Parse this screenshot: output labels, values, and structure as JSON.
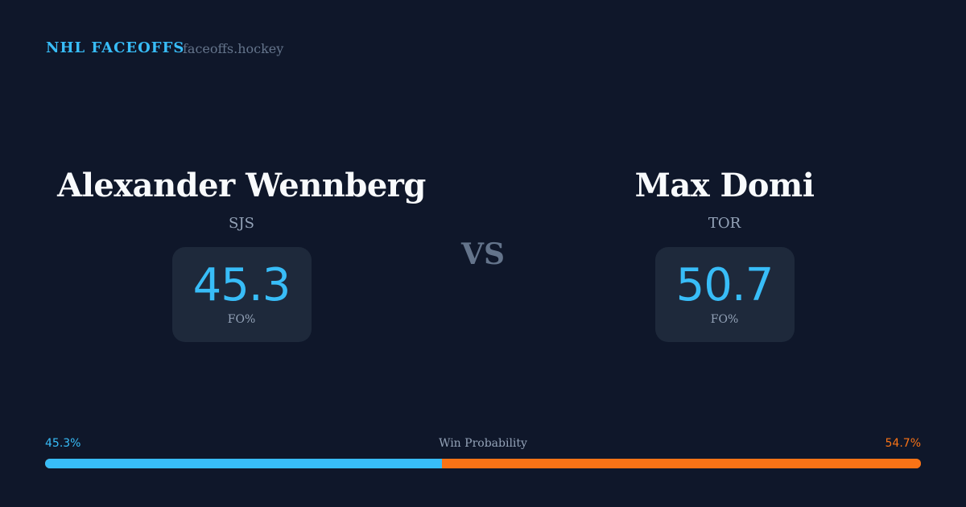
{
  "header": {
    "brand": "NHL FACEOFFS",
    "site": "faceoffs.hockey"
  },
  "players": [
    {
      "name": "Alexander Wennberg",
      "team": "SJS",
      "fo_pct": "45.3",
      "fo_label": "FO%"
    },
    {
      "name": "Max Domi",
      "team": "TOR",
      "fo_pct": "50.7",
      "fo_label": "FO%"
    }
  ],
  "vs": "VS",
  "probability": {
    "title": "Win Probability",
    "left_label": "45.3%",
    "right_label": "54.7%",
    "left_value": 45.3,
    "right_value": 54.7,
    "left_color": "#38bdf8",
    "right_color": "#f97316"
  }
}
